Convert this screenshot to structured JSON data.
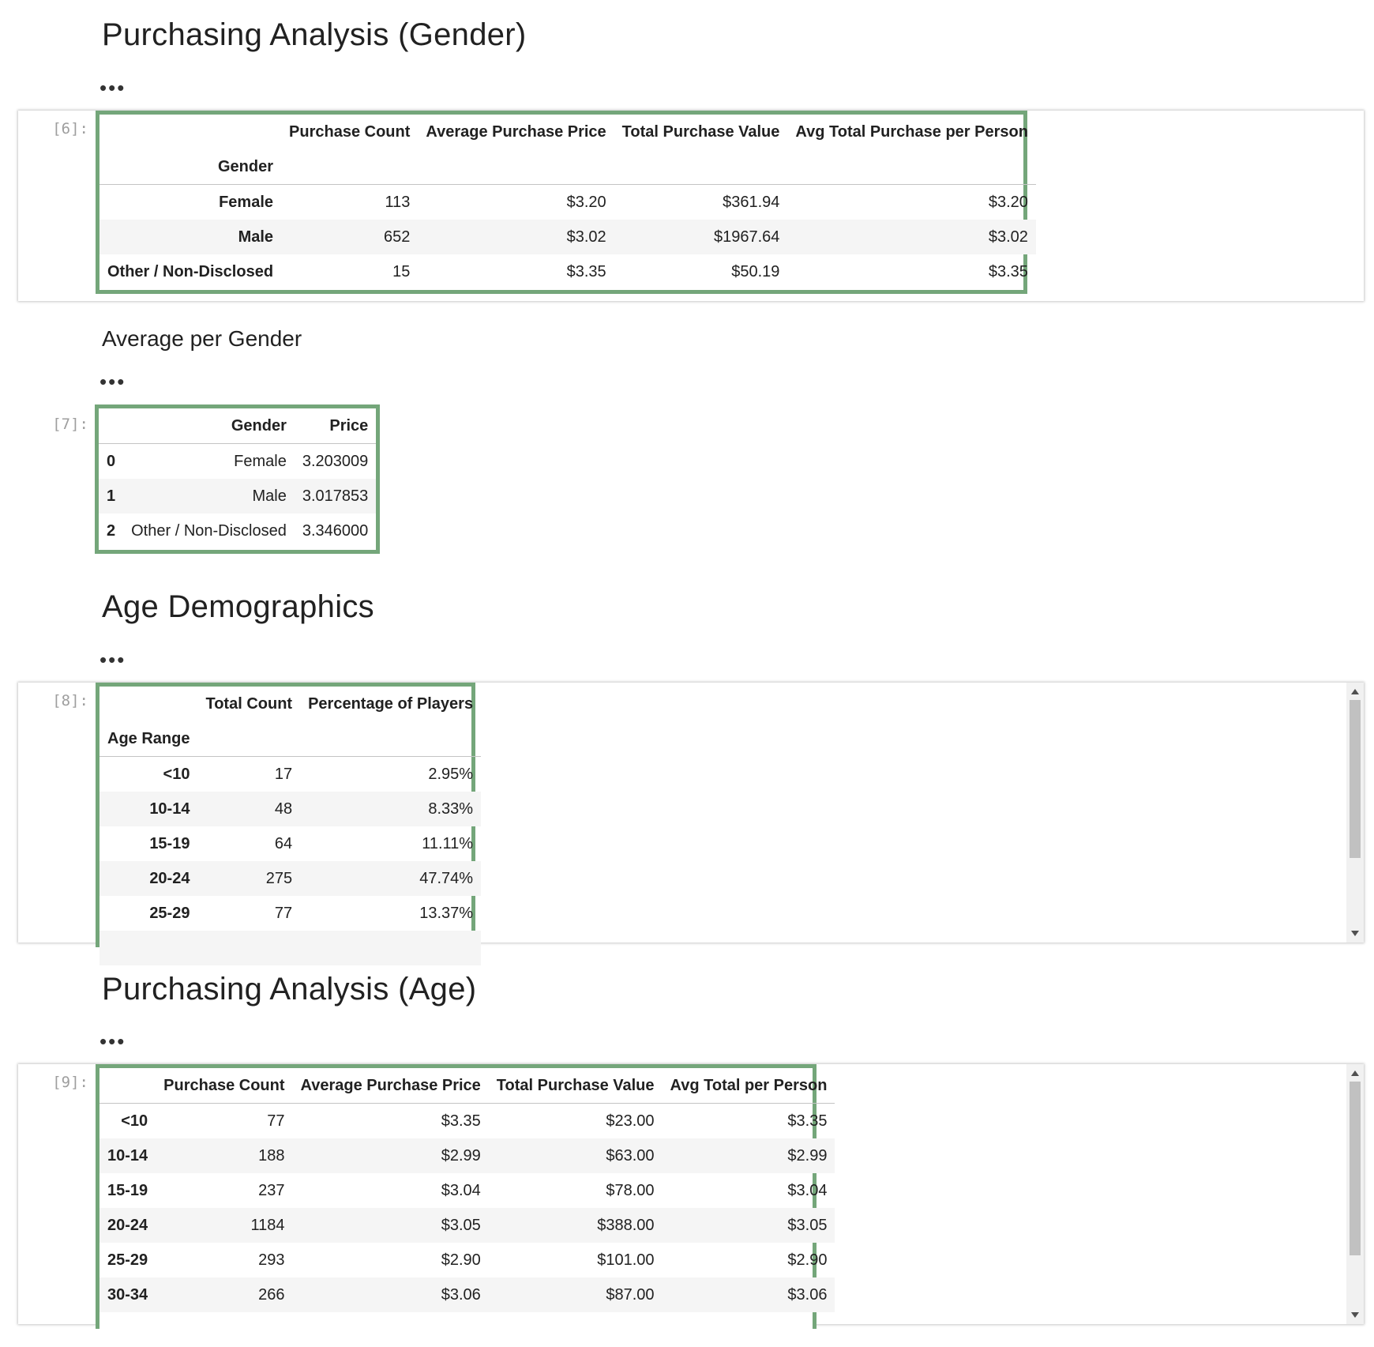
{
  "sections": {
    "gender_title": "Purchasing Analysis (Gender)",
    "avg_gender_title": "Average per Gender",
    "age_demo_title": "Age Demographics",
    "age_purchase_title": "Purchasing Analysis (Age)",
    "ellipsis": "•••"
  },
  "cell6": {
    "prompt": "[6]:",
    "columns": [
      "Purchase Count",
      "Average Purchase Price",
      "Total Purchase Value",
      "Avg Total Purchase per Person"
    ],
    "index_name": "Gender",
    "rows": [
      {
        "index": "Female",
        "values": [
          "113",
          "$3.20",
          "$361.94",
          "$3.20"
        ]
      },
      {
        "index": "Male",
        "values": [
          "652",
          "$3.02",
          "$1967.64",
          "$3.02"
        ]
      },
      {
        "index": "Other / Non-Disclosed",
        "values": [
          "15",
          "$3.35",
          "$50.19",
          "$3.35"
        ]
      }
    ]
  },
  "cell7": {
    "prompt": "[7]:",
    "columns": [
      "Gender",
      "Price"
    ],
    "rows": [
      {
        "index": "0",
        "values": [
          "Female",
          "3.203009"
        ]
      },
      {
        "index": "1",
        "values": [
          "Male",
          "3.017853"
        ]
      },
      {
        "index": "2",
        "values": [
          "Other / Non-Disclosed",
          "3.346000"
        ]
      }
    ]
  },
  "cell8": {
    "prompt": "[8]:",
    "columns": [
      "Total Count",
      "Percentage of Players"
    ],
    "index_name": "Age Range",
    "rows": [
      {
        "index": "<10",
        "values": [
          "17",
          "2.95%"
        ]
      },
      {
        "index": "10-14",
        "values": [
          "48",
          "8.33%"
        ]
      },
      {
        "index": "15-19",
        "values": [
          "64",
          "11.11%"
        ]
      },
      {
        "index": "20-24",
        "values": [
          "275",
          "47.74%"
        ]
      },
      {
        "index": "25-29",
        "values": [
          "77",
          "13.37%"
        ]
      }
    ]
  },
  "cell9": {
    "prompt": "[9]:",
    "columns": [
      "Purchase Count",
      "Average Purchase Price",
      "Total Purchase Value",
      "Avg Total per Person"
    ],
    "rows": [
      {
        "index": "<10",
        "values": [
          "77",
          "$3.35",
          "$23.00",
          "$3.35"
        ]
      },
      {
        "index": "10-14",
        "values": [
          "188",
          "$2.99",
          "$63.00",
          "$2.99"
        ]
      },
      {
        "index": "15-19",
        "values": [
          "237",
          "$3.04",
          "$78.00",
          "$3.04"
        ]
      },
      {
        "index": "20-24",
        "values": [
          "1184",
          "$3.05",
          "$388.00",
          "$3.05"
        ]
      },
      {
        "index": "25-29",
        "values": [
          "293",
          "$2.90",
          "$101.00",
          "$2.90"
        ]
      },
      {
        "index": "30-34",
        "values": [
          "266",
          "$3.06",
          "$87.00",
          "$3.06"
        ]
      }
    ]
  }
}
